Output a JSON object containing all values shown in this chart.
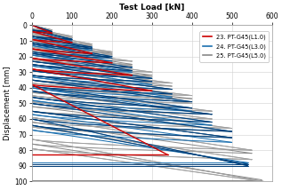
{
  "xlabel": "Test Load [kN]",
  "ylabel": "Displacement [mm]",
  "xlim": [
    0,
    600
  ],
  "ylim": [
    100,
    0
  ],
  "xticks": [
    0,
    100,
    200,
    300,
    400,
    500,
    600
  ],
  "yticks": [
    0,
    10,
    20,
    30,
    40,
    50,
    60,
    70,
    80,
    90,
    100
  ],
  "legend": [
    {
      "label": "23. PT-G45(L1.0)",
      "color": "#cc0000"
    },
    {
      "label": "24. PT-G45(L3.0)",
      "color": "#1a6faf"
    },
    {
      "label": "25. PT-G45(L5.0)",
      "color": "#888888"
    }
  ],
  "bg_color": "#ffffff",
  "grid_color": "#d0d0d0",
  "red_cycles": {
    "peak_loads": [
      50,
      100,
      150,
      200,
      250,
      300,
      340
    ],
    "disp_at_peak": [
      5,
      11,
      18,
      24,
      32,
      42,
      83
    ],
    "disp_residual": [
      4,
      9,
      15,
      21,
      28,
      38,
      83
    ]
  },
  "blue_cycles_1": {
    "peak_loads": [
      50,
      100,
      150,
      200,
      250,
      300,
      350,
      400,
      450,
      500,
      540
    ],
    "disp_at_peak": [
      4,
      9,
      14,
      20,
      27,
      34,
      41,
      49,
      57,
      68,
      90
    ],
    "disp_residual": [
      3,
      7,
      11,
      17,
      23,
      29,
      35,
      42,
      50,
      60,
      90
    ]
  },
  "blue_cycles_2": {
    "peak_loads": [
      50,
      100,
      150,
      200,
      250,
      300,
      350,
      400,
      450,
      500,
      540
    ],
    "disp_at_peak": [
      5,
      10,
      16,
      23,
      30,
      38,
      46,
      55,
      64,
      75,
      88
    ],
    "disp_residual": [
      4,
      8,
      13,
      19,
      26,
      33,
      40,
      48,
      57,
      67,
      88
    ]
  },
  "blue_cycles_3": {
    "peak_loads": [
      50,
      100,
      150,
      200,
      250,
      300,
      350,
      400,
      450,
      500,
      540
    ],
    "disp_at_peak": [
      4,
      9,
      15,
      21,
      29,
      36,
      44,
      53,
      62,
      72,
      89
    ],
    "disp_residual": [
      3,
      7,
      12,
      18,
      25,
      32,
      39,
      46,
      55,
      64,
      89
    ]
  },
  "gray_cycles_1": {
    "peak_loads": [
      50,
      100,
      150,
      200,
      250,
      300,
      350,
      400,
      450,
      500,
      550,
      580
    ],
    "disp_at_peak": [
      3,
      7,
      12,
      17,
      23,
      30,
      37,
      45,
      55,
      66,
      80,
      100
    ],
    "disp_residual": [
      2,
      5,
      9,
      14,
      19,
      25,
      32,
      40,
      49,
      59,
      73,
      100
    ]
  },
  "gray_cycles_2": {
    "peak_loads": [
      50,
      100,
      150,
      200,
      250,
      300,
      350,
      400,
      450,
      500,
      550,
      575
    ],
    "disp_at_peak": [
      4,
      8,
      13,
      19,
      26,
      33,
      41,
      50,
      60,
      72,
      86,
      100
    ],
    "disp_residual": [
      3,
      6,
      10,
      16,
      22,
      29,
      37,
      45,
      55,
      65,
      79,
      100
    ]
  },
  "gray_cycles_3": {
    "peak_loads": [
      50,
      100,
      150,
      200,
      250,
      300,
      350,
      400,
      450,
      500,
      550,
      575
    ],
    "disp_at_peak": [
      3,
      8,
      13,
      18,
      25,
      32,
      39,
      47,
      57,
      68,
      82,
      99
    ],
    "disp_residual": [
      2,
      6,
      10,
      15,
      21,
      28,
      35,
      43,
      52,
      62,
      76,
      99
    ]
  }
}
